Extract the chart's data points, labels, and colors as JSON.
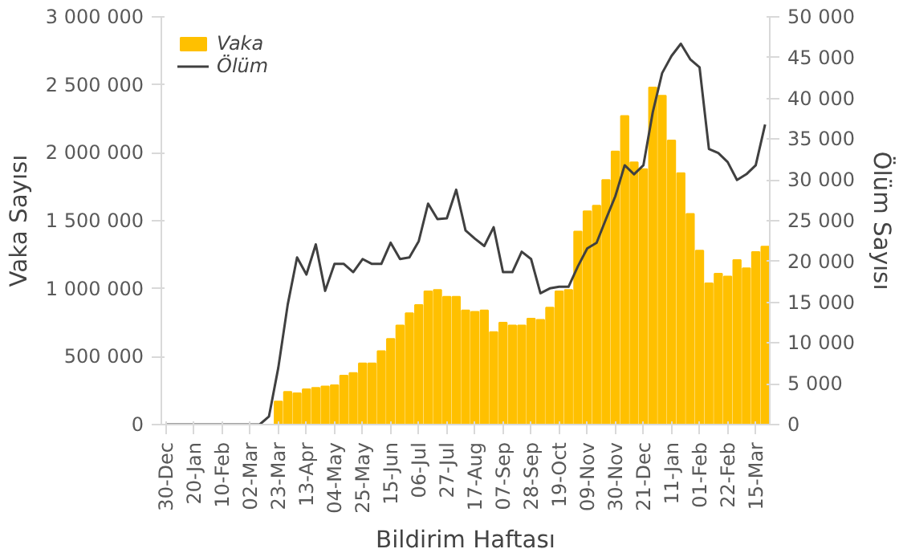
{
  "chart_data": {
    "type": "bar",
    "xlabel": "Bildirim Haftası",
    "ylabel": "Vaka Sayısı",
    "y2label": "Ölüm Sayısı",
    "categories": [
      "30-Dec",
      null,
      null,
      "20-Jan",
      null,
      null,
      "10-Feb",
      null,
      null,
      "02-Mar",
      null,
      null,
      "23-Mar",
      null,
      null,
      "13-Apr",
      null,
      null,
      "04-May",
      null,
      null,
      "25-May",
      null,
      null,
      "15-Jun",
      null,
      null,
      "06-Jul",
      null,
      null,
      "27-Jul",
      null,
      null,
      "17-Aug",
      null,
      null,
      "07-Sep",
      null,
      null,
      "28-Sep",
      null,
      null,
      "19-Oct",
      null,
      null,
      "09-Nov",
      null,
      null,
      "30-Nov",
      null,
      null,
      "21-Dec",
      null,
      null,
      "11-Jan",
      null,
      null,
      "01-Feb",
      null,
      null,
      "22-Feb",
      null,
      null,
      "15-Mar",
      null
    ],
    "series": [
      {
        "name": "Vaka",
        "color": "#ffc000",
        "values": [
          0,
          0,
          0,
          0,
          0,
          0,
          0,
          0,
          0,
          0,
          0,
          0,
          170000,
          240000,
          230000,
          260000,
          270000,
          280000,
          290000,
          360000,
          380000,
          450000,
          450000,
          540000,
          630000,
          730000,
          820000,
          880000,
          980000,
          990000,
          940000,
          940000,
          840000,
          830000,
          840000,
          680000,
          750000,
          730000,
          730000,
          780000,
          770000,
          860000,
          980000,
          990000,
          1420000,
          1570000,
          1610000,
          1800000,
          2010000,
          2270000,
          1930000,
          1880000,
          2480000,
          2420000,
          2090000,
          1850000,
          1550000,
          1280000,
          1040000,
          1110000,
          1090000,
          1210000,
          1150000,
          1270000,
          1310000
        ]
      },
      {
        "name": "Ölüm",
        "type": "line",
        "axis": "y2",
        "color": "#404040",
        "values": [
          0,
          0,
          0,
          0,
          0,
          0,
          0,
          0,
          0,
          0,
          0,
          1000,
          7000,
          14700,
          20500,
          18400,
          22100,
          16400,
          19700,
          19700,
          18700,
          20300,
          19700,
          19700,
          22300,
          20300,
          20500,
          22500,
          27100,
          25200,
          25300,
          28800,
          23800,
          22800,
          21900,
          24200,
          18700,
          18700,
          21200,
          20300,
          16100,
          16700,
          16900,
          16900,
          19400,
          21600,
          22300,
          25200,
          28000,
          31800,
          30700,
          31800,
          38300,
          43100,
          45200,
          46700,
          44800,
          43800,
          33800,
          33300,
          32200,
          30000,
          30700,
          31800,
          36800
        ]
      }
    ],
    "ylim": [
      0,
      3000000
    ],
    "yticks": [
      {
        "value": 0,
        "label": "0"
      },
      {
        "value": 500000,
        "label": "500 000"
      },
      {
        "value": 1000000,
        "label": "1 000 000"
      },
      {
        "value": 1500000,
        "label": "1 500 000"
      },
      {
        "value": 2000000,
        "label": "2 000 000"
      },
      {
        "value": 2500000,
        "label": "2 500 000"
      },
      {
        "value": 3000000,
        "label": "3 000 000"
      }
    ],
    "y2lim": [
      0,
      50000
    ],
    "y2ticks": [
      {
        "value": 0,
        "label": "0"
      },
      {
        "value": 5000,
        "label": "5 000"
      },
      {
        "value": 10000,
        "label": "10 000"
      },
      {
        "value": 15000,
        "label": "15 000"
      },
      {
        "value": 20000,
        "label": "20 000"
      },
      {
        "value": 25000,
        "label": "25 000"
      },
      {
        "value": 30000,
        "label": "30 000"
      },
      {
        "value": 35000,
        "label": "35 000"
      },
      {
        "value": 40000,
        "label": "40 000"
      },
      {
        "value": 45000,
        "label": "45 000"
      },
      {
        "value": 50000,
        "label": "50 000"
      }
    ],
    "legend": "top left",
    "grid": false
  }
}
